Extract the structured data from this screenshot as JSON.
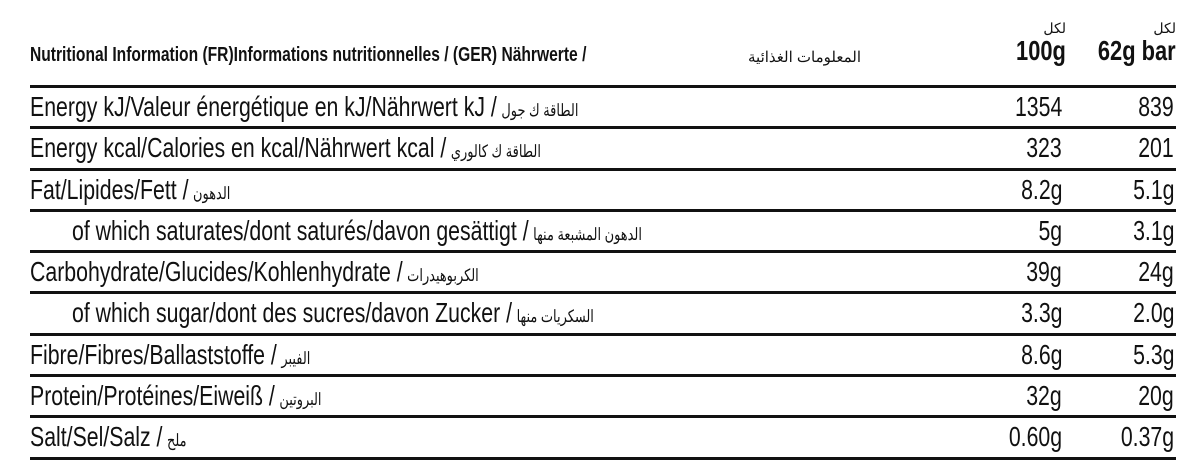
{
  "header": {
    "title": "Nutritional Information (FR)Informations nutritionnelles / (GER) Nährwerte /",
    "title_ar": "المعلومات الغذائية",
    "columns": [
      {
        "per": "لكل",
        "unit": "100g"
      },
      {
        "per": "لكل",
        "unit": "62g bar"
      }
    ]
  },
  "rows": [
    {
      "label": "Energy  kJ/Valeur énergétique en kJ/Nährwert kJ /",
      "label_ar": "الطاقة ك جول",
      "per100g": "1354",
      "perBar": "839",
      "indent": false
    },
    {
      "label": "Energy kcal/Calories en kcal/Nährwert kcal /",
      "label_ar": "الطاقة ك كالوري",
      "per100g": "323",
      "perBar": "201",
      "indent": false
    },
    {
      "label": "Fat/Lipides/Fett /",
      "label_ar": "الدهون",
      "per100g": "8.2g",
      "perBar": "5.1g",
      "indent": false
    },
    {
      "label": "of which saturates/dont saturés/davon gesättigt /",
      "label_ar": "الدهون المشبعة منها",
      "per100g": "5g",
      "perBar": "3.1g",
      "indent": true
    },
    {
      "label": "Carbohydrate/Glucides/Kohlenhydrate /",
      "label_ar": "الكربوهيدرات",
      "per100g": "39g",
      "perBar": "24g",
      "indent": false
    },
    {
      "label": "of which sugar/dont des sucres/davon Zucker /",
      "label_ar": "السكريات منها",
      "per100g": "3.3g",
      "perBar": "2.0g",
      "indent": true
    },
    {
      "label": "Fibre/Fibres/Ballaststoffe /",
      "label_ar": "الفيبر",
      "per100g": "8.6g",
      "perBar": "5.3g",
      "indent": false
    },
    {
      "label": "Protein/Protéines/Eiweiß /",
      "label_ar": "البروتين",
      "per100g": "32g",
      "perBar": "20g",
      "indent": false
    },
    {
      "label": "Salt/Sel/Salz /",
      "label_ar": "ملح",
      "per100g": "0.60g",
      "perBar": "0.37g",
      "indent": false
    }
  ]
}
